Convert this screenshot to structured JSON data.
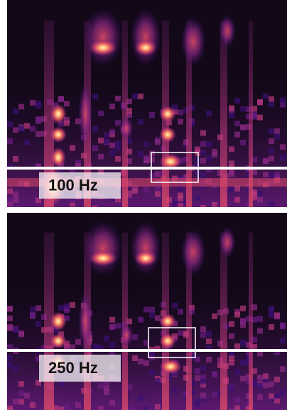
{
  "panels": [
    {
      "label": "100 Hz"
    },
    {
      "label": "250 Hz"
    }
  ]
}
